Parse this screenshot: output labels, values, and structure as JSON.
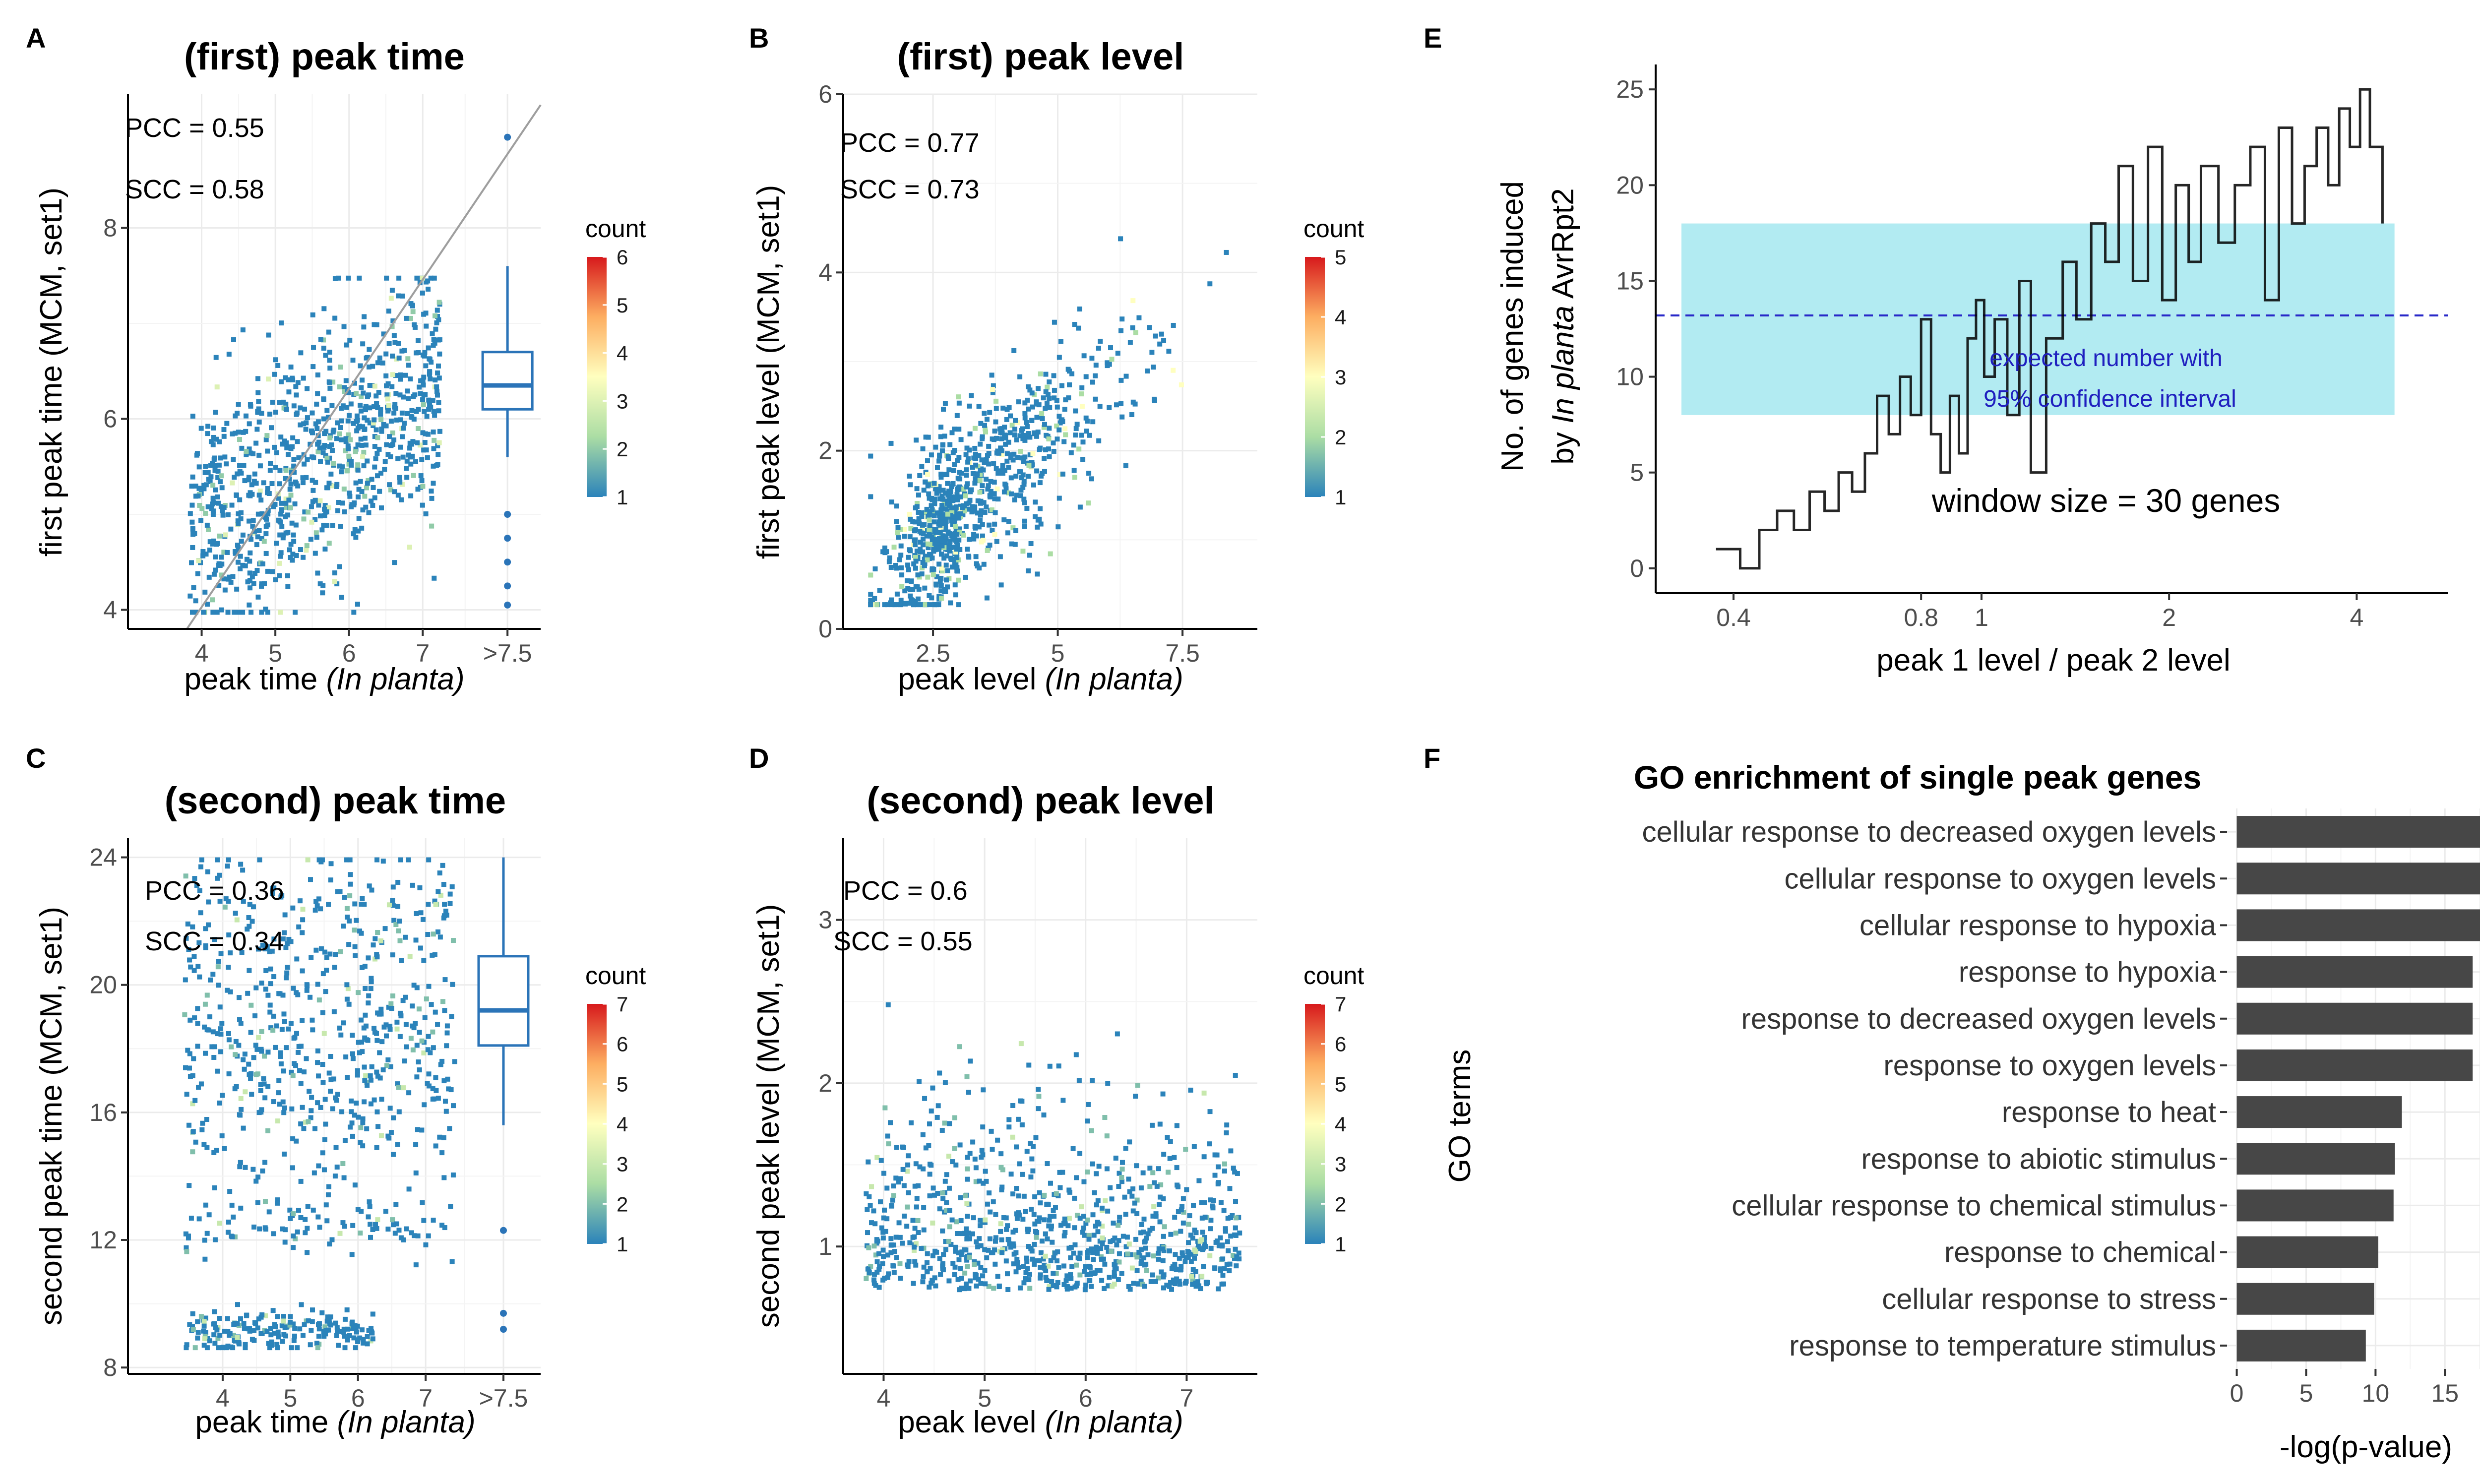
{
  "colors": {
    "count_low": "#2b83ba",
    "count_high": "#d7191c",
    "boxplot": "#2b74b8",
    "ci_band": "#b2ebf2",
    "expected_line": "#2828c8",
    "go_bar": "#474747"
  },
  "chart_data": [
    {
      "id": "A",
      "type": "heatmap",
      "title": "(first) peak time",
      "xlabel": "peak time (In planta)",
      "ylabel": "first peak time (MCM, set1)",
      "xticks": [
        "4",
        "5",
        "6",
        "7",
        ">7.5"
      ],
      "xlim": [
        3.0,
        8.6
      ],
      "yticks": [
        4,
        6,
        8
      ],
      "ylim": [
        3.8,
        9.4
      ],
      "annotations": [
        "PCC = 0.55",
        "SCC = 0.58"
      ],
      "legend": {
        "title": "count",
        "range": [
          1,
          6
        ],
        "ticks": [
          1,
          2,
          3,
          4,
          5,
          6
        ],
        "placement": "right"
      },
      "identity_line": true,
      "boxplot": {
        "x": ">7.5",
        "min": 5.6,
        "q1": 6.1,
        "median": 6.35,
        "q3": 6.7,
        "max": 7.6,
        "outliers": [
          5.0,
          4.75,
          4.5,
          4.25,
          4.05,
          8.95
        ]
      },
      "cluster": {
        "x_range": [
          3.8,
          7.2
        ],
        "y_range": [
          4.0,
          7.5
        ],
        "center": [
          5.5,
          5.5
        ]
      }
    },
    {
      "id": "B",
      "type": "heatmap",
      "title": "(first) peak level",
      "xlabel": "peak level (In planta)",
      "ylabel": "first peak level (MCM, set1)",
      "xticks": [
        2.5,
        5.0,
        7.5
      ],
      "xlim": [
        0.7,
        9.0
      ],
      "yticks": [
        0,
        2,
        4,
        6
      ],
      "ylim": [
        0,
        6.0
      ],
      "annotations": [
        "PCC = 0.77",
        "SCC = 0.73"
      ],
      "legend": {
        "title": "count",
        "range": [
          1,
          5
        ],
        "ticks": [
          1,
          2,
          3,
          4,
          5
        ],
        "placement": "right"
      },
      "cluster": {
        "x_range": [
          1.2,
          8.8
        ],
        "y_range": [
          0.3,
          5.8
        ],
        "center": [
          3.0,
          1.5
        ]
      }
    },
    {
      "id": "C",
      "type": "heatmap",
      "title": "(second) peak time",
      "xlabel": "peak time (In planta)",
      "ylabel": "second peak time (MCM, set1)",
      "xticks": [
        "4",
        "5",
        "6",
        "7",
        ">7.5"
      ],
      "xlim": [
        2.6,
        8.7
      ],
      "yticks": [
        8,
        12,
        16,
        20,
        24
      ],
      "ylim": [
        7.8,
        24.6
      ],
      "annotations": [
        "PCC = 0.36",
        "SCC = 0.34"
      ],
      "legend": {
        "title": "count",
        "range": [
          1,
          7
        ],
        "ticks": [
          1,
          2,
          3,
          4,
          5,
          6,
          7
        ],
        "placement": "right"
      },
      "boxplot": {
        "x": ">7.5",
        "min": 15.6,
        "q1": 18.1,
        "median": 19.2,
        "q3": 20.9,
        "max": 24.0,
        "outliers": [
          12.3,
          9.7,
          9.2
        ]
      },
      "cluster": {
        "x_range": [
          3.4,
          7.4
        ],
        "y_range": [
          8.7,
          24.0
        ],
        "center": [
          5.0,
          18.0
        ]
      }
    },
    {
      "id": "D",
      "type": "heatmap",
      "title": "(second) peak level",
      "xlabel": "peak level (In planta)",
      "ylabel": "second peak level (MCM, set1)",
      "xticks": [
        4,
        5,
        6,
        7
      ],
      "xlim": [
        3.6,
        7.7
      ],
      "yticks": [
        1,
        2,
        3
      ],
      "ylim": [
        0.22,
        3.5
      ],
      "annotations": [
        "PCC = 0.6",
        "SCC = 0.55"
      ],
      "legend": {
        "title": "count",
        "range": [
          1,
          7
        ],
        "ticks": [
          1,
          2,
          3,
          4,
          5,
          6,
          7
        ],
        "placement": "right"
      },
      "cluster": {
        "x_range": [
          3.8,
          7.5
        ],
        "y_range": [
          0.35,
          3.35
        ],
        "center": [
          5.2,
          0.8
        ]
      }
    },
    {
      "id": "E",
      "type": "line",
      "xlabel": "peak 1 level / peak 2 level",
      "ylabel_line1": "No. of genes induced",
      "ylabel_line2_prefix": "by ",
      "ylabel_line2_italic": "In planta",
      "ylabel_line2_suffix": " AvrRpt2",
      "x_scale": "log2",
      "xticks": [
        "0.4",
        "0.8",
        "1",
        "2",
        "4"
      ],
      "xtick_values": [
        0.4,
        0.8,
        1,
        2,
        4
      ],
      "xlim": [
        0.3,
        5.6
      ],
      "yticks": [
        0,
        5,
        10,
        15,
        20,
        25
      ],
      "ylim": [
        -1.3,
        26.3
      ],
      "confidence_band": [
        8,
        18
      ],
      "expected_value": 13.2,
      "band_labels": [
        "expected number with",
        "95% confidence interval"
      ],
      "window_label": "window size = 30 genes",
      "x": [
        0.375,
        0.41,
        0.44,
        0.47,
        0.5,
        0.53,
        0.56,
        0.59,
        0.62,
        0.65,
        0.68,
        0.71,
        0.74,
        0.77,
        0.8,
        0.83,
        0.86,
        0.89,
        0.92,
        0.95,
        0.98,
        1.01,
        1.05,
        1.1,
        1.15,
        1.2,
        1.27,
        1.35,
        1.42,
        1.5,
        1.58,
        1.66,
        1.75,
        1.85,
        1.95,
        2.05,
        2.15,
        2.25,
        2.4,
        2.55,
        2.7,
        2.85,
        3.0,
        3.15,
        3.3,
        3.45,
        3.6,
        3.75,
        3.9,
        4.05,
        4.2,
        4.4
      ],
      "y": [
        1,
        0,
        2,
        3,
        2,
        4,
        3,
        5,
        4,
        6,
        9,
        7,
        10,
        8,
        13,
        7,
        5,
        9,
        6,
        12,
        14,
        10,
        13,
        8,
        15,
        5,
        12,
        16,
        13,
        18,
        16,
        21,
        15,
        22,
        14,
        20,
        16,
        21,
        17,
        20,
        22,
        14,
        23,
        18,
        21,
        23,
        20,
        24,
        22,
        25,
        22,
        18
      ]
    },
    {
      "id": "F",
      "type": "bar",
      "title": "GO enrichment of single peak genes",
      "xlabel": "-log(p-value)",
      "ylabel": "GO terms",
      "xticks": [
        0,
        5,
        10,
        15
      ],
      "xlim": [
        -0.7,
        18.6
      ],
      "categories": [
        "cellular response to decreased oxygen levels",
        "cellular response to oxygen levels",
        "cellular response to hypoxia",
        "response to hypoxia",
        "response to decreased oxygen levels",
        "response to oxygen levels",
        "response to heat",
        "response to abiotic stimulus",
        "cellular response to chemical stimulus",
        "response to chemical",
        "cellular response to stress",
        "response to temperature stimulus"
      ],
      "values": [
        17.7,
        17.7,
        17.7,
        17.0,
        17.0,
        17.0,
        11.9,
        11.4,
        11.3,
        10.2,
        9.9,
        9.3
      ]
    }
  ]
}
